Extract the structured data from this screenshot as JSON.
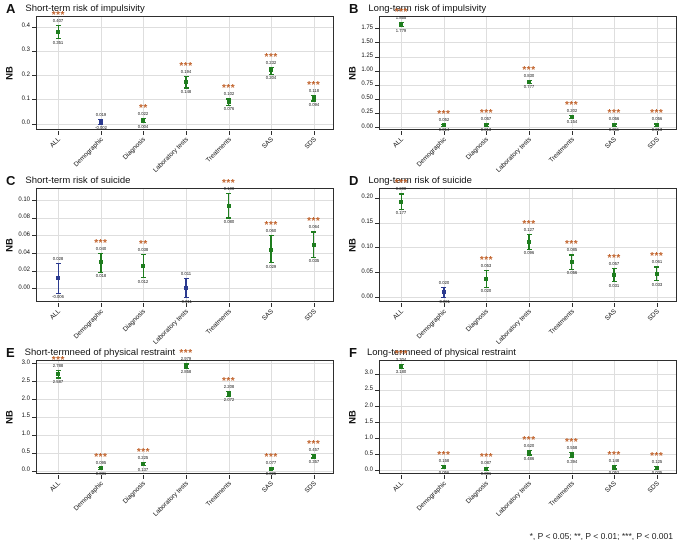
{
  "figure": {
    "footnote": "*, P < 0.05; **, P < 0.01; ***, P < 0.001"
  },
  "chart_data": {
    "type": "scatter",
    "subtype": "point-estimates-with-error-bars",
    "categories": [
      "ALL",
      "Demographic",
      "Diagnosis",
      "Laboratory tests",
      "Treatments",
      "SAS",
      "SDS"
    ],
    "ylabel": "NB",
    "grid": true,
    "colors": {
      "significant_marker": "#1e7d1e",
      "nonsignificant_marker": "#2b3a8f",
      "stars": "#c1622b",
      "gridline": "#dedede",
      "panel_border": "#2e2e2e"
    },
    "significance_legend": "*, P < 0.05; **, P < 0.01; ***, P < 0.001",
    "panels": [
      {
        "letter": "A",
        "title": "Short-term risk of impulsivity",
        "ylim": [
          -0.03,
          0.44
        ],
        "ytick_values": [
          0.0,
          0.1,
          0.2,
          0.3,
          0.4
        ],
        "ytick_labels": [
          "0.0",
          "0.1",
          "0.2",
          "0.3",
          "0.4"
        ],
        "points": [
          {
            "category": "ALL",
            "value": 0.38,
            "lo": 0.351,
            "hi": 0.407,
            "sig": "***",
            "significant": true
          },
          {
            "category": "Demographic",
            "value": 0.008,
            "lo": -0.002,
            "hi": 0.019,
            "sig": "",
            "significant": false
          },
          {
            "category": "Diagnosis",
            "value": 0.013,
            "lo": 0.004,
            "hi": 0.022,
            "sig": "**",
            "significant": true
          },
          {
            "category": "Laboratory tests",
            "value": 0.171,
            "lo": 0.148,
            "hi": 0.194,
            "sig": "***",
            "significant": true
          },
          {
            "category": "Treatments",
            "value": 0.089,
            "lo": 0.076,
            "hi": 0.102,
            "sig": "***",
            "significant": true
          },
          {
            "category": "SAS",
            "value": 0.22,
            "lo": 0.204,
            "hi": 0.232,
            "sig": "***",
            "significant": true
          },
          {
            "category": "SDS",
            "value": 0.106,
            "lo": 0.094,
            "hi": 0.118,
            "sig": "***",
            "significant": true
          }
        ]
      },
      {
        "letter": "B",
        "title": "Long-term risk of impulsivity",
        "ylim": [
          -0.07,
          1.95
        ],
        "ytick_values": [
          0.0,
          0.25,
          0.5,
          0.75,
          1.0,
          1.25,
          1.5,
          1.75
        ],
        "ytick_labels": [
          "0.00",
          "0.25",
          "0.50",
          "0.75",
          "1.00",
          "1.25",
          "1.50",
          "1.75"
        ],
        "points": [
          {
            "category": "ALL",
            "value": 1.82,
            "lo": 1.779,
            "hi": 1.855,
            "sig": "***",
            "significant": true
          },
          {
            "category": "Demographic",
            "value": 0.032,
            "lo": 0.014,
            "hi": 0.052,
            "sig": "***",
            "significant": true
          },
          {
            "category": "Diagnosis",
            "value": 0.038,
            "lo": 0.013,
            "hi": 0.057,
            "sig": "***",
            "significant": true
          },
          {
            "category": "Laboratory tests",
            "value": 0.8,
            "lo": 0.777,
            "hi": 0.83,
            "sig": "***",
            "significant": true
          },
          {
            "category": "Treatments",
            "value": 0.18,
            "lo": 0.154,
            "hi": 0.202,
            "sig": "***",
            "significant": true
          },
          {
            "category": "SAS",
            "value": 0.033,
            "lo": 0.011,
            "hi": 0.056,
            "sig": "***",
            "significant": true
          },
          {
            "category": "SDS",
            "value": 0.036,
            "lo": 0.013,
            "hi": 0.056,
            "sig": "***",
            "significant": true
          }
        ]
      },
      {
        "letter": "C",
        "title": "Short-term risk of suicide",
        "ylim": [
          -0.017,
          0.113
        ],
        "ytick_values": [
          0.0,
          0.02,
          0.04,
          0.06,
          0.08,
          0.1
        ],
        "ytick_labels": [
          "0.00",
          "0.02",
          "0.04",
          "0.06",
          "0.08",
          "0.10"
        ],
        "points": [
          {
            "category": "ALL",
            "value": 0.011,
            "lo": -0.006,
            "hi": 0.028,
            "sig": "",
            "significant": false
          },
          {
            "category": "Demographic",
            "value": 0.03,
            "lo": 0.018,
            "hi": 0.04,
            "sig": "***",
            "significant": true
          },
          {
            "category": "Diagnosis",
            "value": 0.025,
            "lo": 0.012,
            "hi": 0.038,
            "sig": "**",
            "significant": true
          },
          {
            "category": "Laboratory tests",
            "value": 0.0,
            "lo": -0.011,
            "hi": 0.011,
            "sig": "",
            "significant": false
          },
          {
            "category": "Treatments",
            "value": 0.094,
            "lo": 0.08,
            "hi": 0.108,
            "sig": "***",
            "significant": true
          },
          {
            "category": "SAS",
            "value": 0.044,
            "lo": 0.029,
            "hi": 0.06,
            "sig": "***",
            "significant": true
          },
          {
            "category": "SDS",
            "value": 0.049,
            "lo": 0.035,
            "hi": 0.064,
            "sig": "***",
            "significant": true
          }
        ]
      },
      {
        "letter": "D",
        "title": "Long-term risk of suicide",
        "ylim": [
          -0.012,
          0.218
        ],
        "ytick_values": [
          0.0,
          0.05,
          0.1,
          0.15,
          0.2
        ],
        "ytick_labels": [
          "0.00",
          "0.05",
          "0.10",
          "0.15",
          "0.20"
        ],
        "points": [
          {
            "category": "ALL",
            "value": 0.192,
            "lo": 0.177,
            "hi": 0.208,
            "sig": "***",
            "significant": true
          },
          {
            "category": "Demographic",
            "value": 0.01,
            "lo": -0.001,
            "hi": 0.02,
            "sig": "",
            "significant": false
          },
          {
            "category": "Diagnosis",
            "value": 0.037,
            "lo": 0.02,
            "hi": 0.053,
            "sig": "***",
            "significant": true
          },
          {
            "category": "Laboratory tests",
            "value": 0.111,
            "lo": 0.096,
            "hi": 0.127,
            "sig": "***",
            "significant": true
          },
          {
            "category": "Treatments",
            "value": 0.07,
            "lo": 0.056,
            "hi": 0.085,
            "sig": "***",
            "significant": true
          },
          {
            "category": "SAS",
            "value": 0.044,
            "lo": 0.031,
            "hi": 0.057,
            "sig": "***",
            "significant": true
          },
          {
            "category": "SDS",
            "value": 0.046,
            "lo": 0.033,
            "hi": 0.061,
            "sig": "***",
            "significant": true
          }
        ]
      },
      {
        "letter": "E",
        "title": "Short-termneed of physical restraint",
        "ylim": [
          -0.12,
          3.06
        ],
        "ytick_values": [
          0.0,
          0.5,
          1.0,
          1.5,
          2.0,
          2.5,
          3.0
        ],
        "ytick_labels": [
          "0.0",
          "0.5",
          "1.0",
          "1.5",
          "2.0",
          "2.5",
          "3.0"
        ],
        "points": [
          {
            "category": "ALL",
            "value": 2.69,
            "lo": 2.587,
            "hi": 2.788,
            "sig": "***",
            "significant": true
          },
          {
            "category": "Demographic",
            "value": 0.063,
            "lo": 0.031,
            "hi": 0.095,
            "sig": "***",
            "significant": true
          },
          {
            "category": "Diagnosis",
            "value": 0.18,
            "lo": 0.137,
            "hi": 0.225,
            "sig": "***",
            "significant": true
          },
          {
            "category": "Laboratory tests",
            "value": 2.92,
            "lo": 2.858,
            "hi": 2.979,
            "sig": "***",
            "significant": true
          },
          {
            "category": "Treatments",
            "value": 2.14,
            "lo": 2.072,
            "hi": 2.208,
            "sig": "***",
            "significant": true
          },
          {
            "category": "SAS",
            "value": 0.051,
            "lo": 0.025,
            "hi": 0.077,
            "sig": "***",
            "significant": true
          },
          {
            "category": "SDS",
            "value": 0.407,
            "lo": 0.357,
            "hi": 0.457,
            "sig": "***",
            "significant": true
          }
        ]
      },
      {
        "letter": "F",
        "title": "Long-termneed of  physical restraint",
        "ylim": [
          -0.14,
          3.4
        ],
        "ytick_values": [
          0.0,
          0.5,
          1.0,
          1.5,
          2.0,
          2.5,
          3.0
        ],
        "ytick_labels": [
          "0.0",
          "0.5",
          "1.0",
          "1.5",
          "2.0",
          "2.5",
          "3.0"
        ],
        "points": [
          {
            "category": "ALL",
            "value": 3.242,
            "lo": 3.18,
            "hi": 3.304,
            "sig": "***",
            "significant": true
          },
          {
            "category": "Demographic",
            "value": 0.107,
            "lo": 0.056,
            "hi": 0.158,
            "sig": "***",
            "significant": true
          },
          {
            "category": "Diagnosis",
            "value": 0.044,
            "lo": 0.001,
            "hi": 0.087,
            "sig": "***",
            "significant": true
          },
          {
            "category": "Laboratory tests",
            "value": 0.553,
            "lo": 0.486,
            "hi": 0.62,
            "sig": "***",
            "significant": true
          },
          {
            "category": "Treatments",
            "value": 0.476,
            "lo": 0.394,
            "hi": 0.558,
            "sig": "***",
            "significant": true
          },
          {
            "category": "SAS",
            "value": 0.1,
            "lo": 0.052,
            "hi": 0.148,
            "sig": "***",
            "significant": true
          },
          {
            "category": "SDS",
            "value": 0.08,
            "lo": 0.035,
            "hi": 0.125,
            "sig": "***",
            "significant": true
          }
        ]
      }
    ]
  }
}
